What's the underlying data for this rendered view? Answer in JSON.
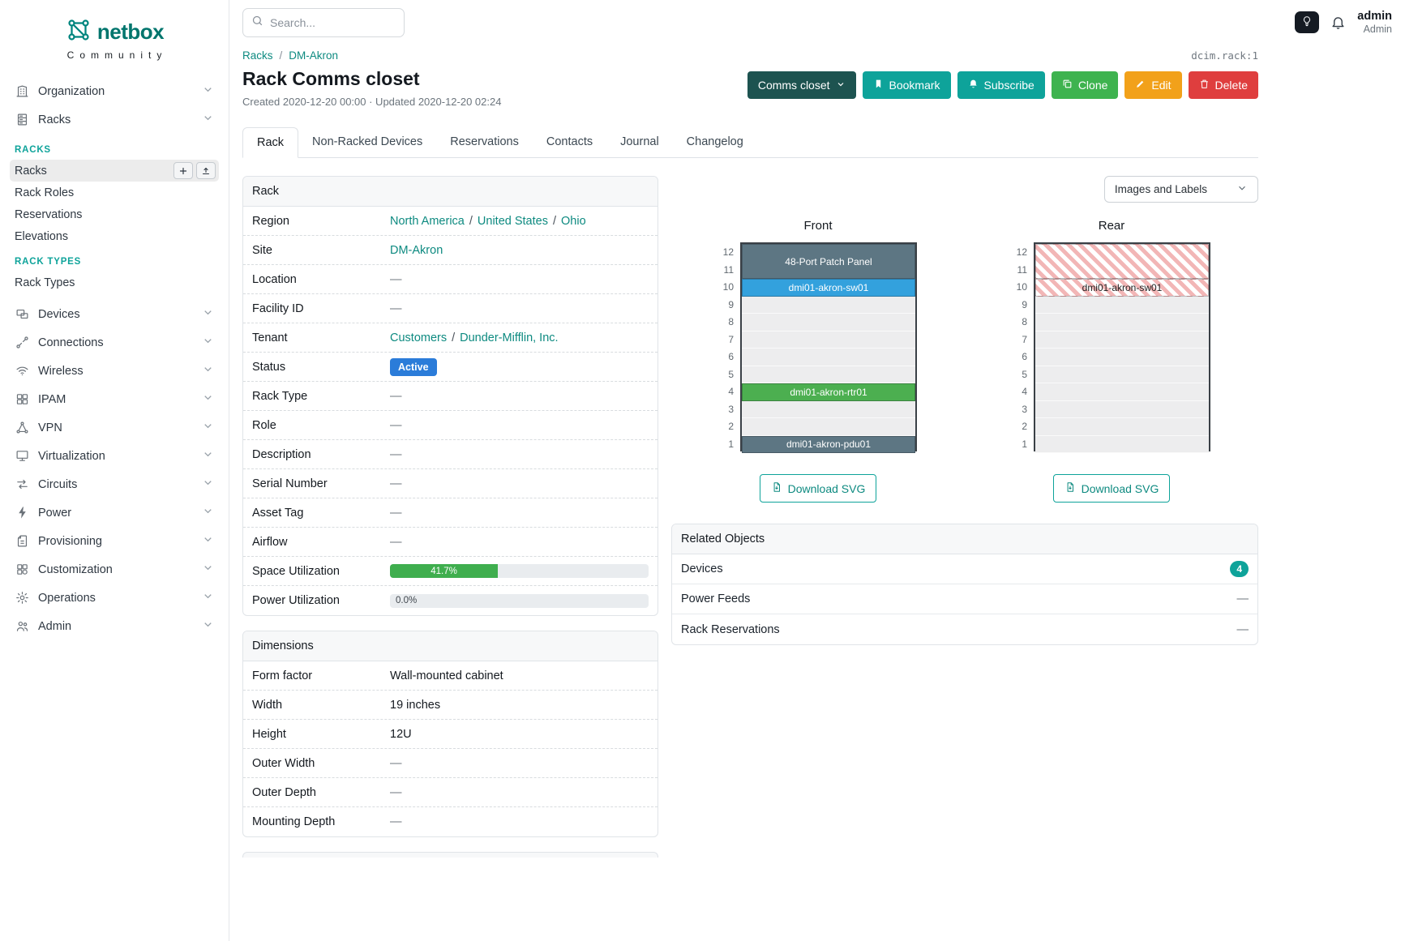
{
  "theme": {
    "accent": "#0ea39a",
    "link": "#0d8a80",
    "success": "#3eb34f",
    "warning": "#f2a11a",
    "danger": "#df3e3e",
    "context": "#1d5350"
  },
  "ui": {
    "link_separator": "/"
  },
  "brand": {
    "name": "netbox",
    "tagline": "Community"
  },
  "topbar": {
    "search_placeholder": "Search...",
    "user": {
      "name": "admin",
      "role": "Admin"
    }
  },
  "sidebar": {
    "items": [
      {
        "label": "Organization"
      },
      {
        "label": "Racks"
      },
      {
        "label": "Devices"
      },
      {
        "label": "Connections"
      },
      {
        "label": "Wireless"
      },
      {
        "label": "IPAM"
      },
      {
        "label": "VPN"
      },
      {
        "label": "Virtualization"
      },
      {
        "label": "Circuits"
      },
      {
        "label": "Power"
      },
      {
        "label": "Provisioning"
      },
      {
        "label": "Customization"
      },
      {
        "label": "Operations"
      },
      {
        "label": "Admin"
      }
    ],
    "racks_section": {
      "header": "RACKS",
      "items": [
        "Racks",
        "Rack Roles",
        "Reservations",
        "Elevations"
      ],
      "active_item": "Racks"
    },
    "rack_types_section": {
      "header": "RACK TYPES",
      "items": [
        "Rack Types"
      ]
    }
  },
  "breadcrumb": {
    "items": [
      "Racks",
      "DM-Akron"
    ],
    "separator": "/",
    "object_id": "dcim.rack:1"
  },
  "page": {
    "title": "Rack Comms closet",
    "meta": "Created 2020-12-20 00:00 · Updated 2020-12-20 02:24"
  },
  "actions": {
    "context": "Comms closet",
    "bookmark": "Bookmark",
    "subscribe": "Subscribe",
    "clone": "Clone",
    "edit": "Edit",
    "delete": "Delete"
  },
  "tabs": [
    {
      "label": "Rack",
      "active": true
    },
    {
      "label": "Non-Racked Devices"
    },
    {
      "label": "Reservations"
    },
    {
      "label": "Contacts"
    },
    {
      "label": "Journal"
    },
    {
      "label": "Changelog"
    }
  ],
  "rack_panel": {
    "title": "Rack",
    "rows": {
      "region": {
        "label": "Region",
        "links": [
          "North America",
          "United States",
          "Ohio"
        ]
      },
      "site": {
        "label": "Site",
        "link": "DM-Akron"
      },
      "location": {
        "label": "Location",
        "value": "—"
      },
      "facility_id": {
        "label": "Facility ID",
        "value": "—"
      },
      "tenant": {
        "label": "Tenant",
        "links": [
          "Customers",
          "Dunder-Mifflin, Inc."
        ]
      },
      "status": {
        "label": "Status",
        "badge": "Active",
        "badge_color": "#2b7cd9"
      },
      "rack_type": {
        "label": "Rack Type",
        "value": "—"
      },
      "role": {
        "label": "Role",
        "value": "—"
      },
      "description": {
        "label": "Description",
        "value": "—"
      },
      "serial_number": {
        "label": "Serial Number",
        "value": "—"
      },
      "asset_tag": {
        "label": "Asset Tag",
        "value": "—"
      },
      "airflow": {
        "label": "Airflow",
        "value": "—"
      },
      "space_utilization": {
        "label": "Space Utilization",
        "percent": 41.7,
        "display": "41.7%",
        "color": "#3fae4e"
      },
      "power_utilization": {
        "label": "Power Utilization",
        "percent": 0.0,
        "display": "0.0%"
      }
    }
  },
  "dimensions_panel": {
    "title": "Dimensions",
    "rows": [
      {
        "label": "Form factor",
        "value": "Wall-mounted cabinet"
      },
      {
        "label": "Width",
        "value": "19 inches"
      },
      {
        "label": "Height",
        "value": "12U"
      },
      {
        "label": "Outer Width",
        "value": "—"
      },
      {
        "label": "Outer Depth",
        "value": "—"
      },
      {
        "label": "Mounting Depth",
        "value": "—"
      }
    ]
  },
  "elevation": {
    "view_toggle": "Images and Labels",
    "download_label": "Download SVG",
    "units": 12,
    "front": {
      "title": "Front",
      "devices": [
        {
          "name": "48-Port Patch Panel",
          "u": 11,
          "height": 2,
          "color": "#5d7683",
          "text": "#ffffff"
        },
        {
          "name": "dmi01-akron-sw01",
          "u": 10,
          "height": 1,
          "color": "#33a1dd",
          "text": "#ffffff"
        },
        {
          "name": "dmi01-akron-rtr01",
          "u": 4,
          "height": 1,
          "color": "#4caf50",
          "text": "#ffffff"
        },
        {
          "name": "dmi01-akron-pdu01",
          "u": 1,
          "height": 1,
          "color": "#5d7683",
          "text": "#ffffff"
        }
      ]
    },
    "rear": {
      "title": "Rear",
      "devices": [
        {
          "name": "",
          "u": 11,
          "height": 2,
          "striped": true
        },
        {
          "name": "dmi01-akron-sw01",
          "u": 10,
          "height": 1,
          "striped": true,
          "text": "#222222"
        }
      ]
    }
  },
  "related_objects": {
    "title": "Related Objects",
    "rows": [
      {
        "label": "Devices",
        "count": "4"
      },
      {
        "label": "Power Feeds",
        "value": "—"
      },
      {
        "label": "Rack Reservations",
        "value": "—"
      }
    ]
  }
}
